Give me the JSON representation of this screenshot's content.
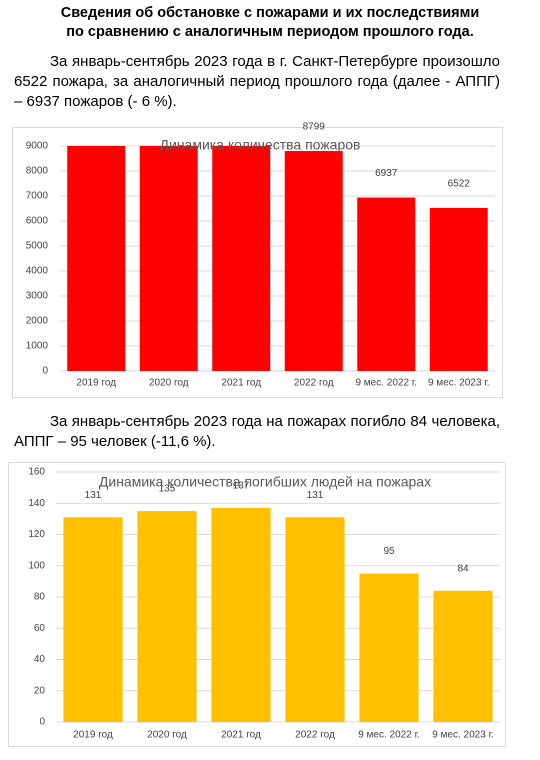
{
  "title": "Сведения об обстановке с пожарами и их последствиями по сравнению с аналогичным периодом прошлого года.",
  "paragraphs": [
    "За январь-сентябрь 2023 года в г. Санкт-Петербурге произошло 6522 пожара, за аналогичный период прошлого года (далее - АППГ) – 6937 пожаров (- 6 %).",
    "За январь-сентябрь 2023 года на пожарах погибло 84 человека, АППГ – 95 человек (-11,6 %)."
  ],
  "chart_data": [
    {
      "type": "bar",
      "title": "Динамика количества пожаров",
      "categories": [
        "2019 год",
        "2020 год",
        "2021 год",
        "2022 год",
        "9 мес. 2022 г.",
        "9 мес. 2023 г."
      ],
      "values": [
        9000,
        9000,
        9000,
        8799,
        6937,
        6522
      ],
      "color": "#ff0000",
      "ylim": [
        0,
        9000
      ],
      "yticks": [
        0,
        1000,
        2000,
        3000,
        4000,
        5000,
        6000,
        7000,
        8000,
        9000
      ],
      "grid": true
    },
    {
      "type": "bar",
      "title": "Динамика количества погибших людей на пожарах",
      "categories": [
        "2019 год",
        "2020 год",
        "2021 год",
        "2022 год",
        "9 мес. 2022 г.",
        "9 мес. 2023 г."
      ],
      "values": [
        131,
        135,
        137,
        131,
        95,
        84
      ],
      "color": "#ffc000",
      "ylim": [
        0,
        160
      ],
      "yticks": [
        0,
        20,
        40,
        60,
        80,
        100,
        120,
        140,
        160
      ],
      "grid": true
    }
  ]
}
